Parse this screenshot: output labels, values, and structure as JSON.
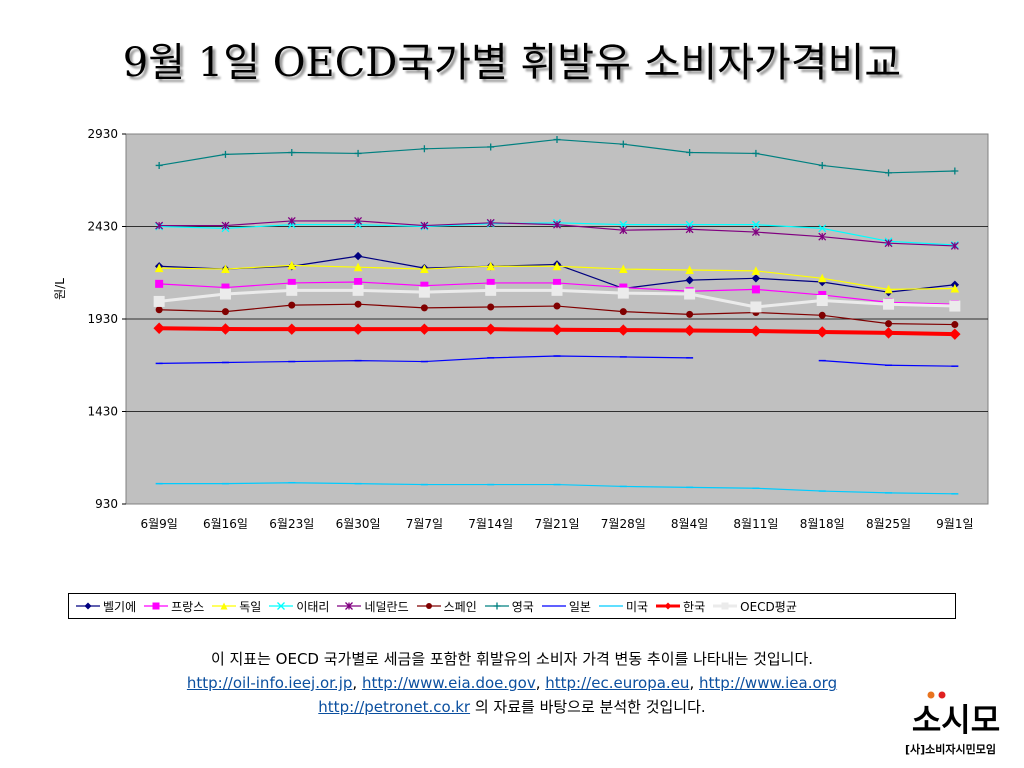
{
  "page": {
    "title": "9월 1일 OECD국가별 휘발유 소비자가격비교"
  },
  "chart_data": {
    "type": "line",
    "ylabel": "원/L",
    "xlabel": "",
    "ylim": [
      930,
      2930
    ],
    "yticks": [
      "930",
      "1430",
      "1930",
      "2430",
      "2930"
    ],
    "categories": [
      "6월9일",
      "6월16일",
      "6월23일",
      "6월30일",
      "7월7일",
      "7월14일",
      "7월21일",
      "7월28일",
      "8월4일",
      "8월11일",
      "8월18일",
      "8월25일",
      "9월1일"
    ],
    "grid": "horizontal",
    "legend_position": "bottom",
    "plot_background": "#c0c0c0",
    "series": [
      {
        "name": "벨기에",
        "color": "#000080",
        "marker": "diamond",
        "width": 1.2,
        "values": [
          2215,
          2200,
          2215,
          2270,
          2205,
          2215,
          2225,
          2095,
          2140,
          2150,
          2130,
          2075,
          2115
        ]
      },
      {
        "name": "프랑스",
        "color": "#ff00ff",
        "marker": "square",
        "width": 1.2,
        "values": [
          2120,
          2100,
          2125,
          2130,
          2110,
          2125,
          2125,
          2100,
          2080,
          2090,
          2060,
          2020,
          2010
        ]
      },
      {
        "name": "독일",
        "color": "#ffff00",
        "marker": "triangle",
        "width": 1.2,
        "values": [
          2205,
          2200,
          2220,
          2210,
          2200,
          2215,
          2215,
          2200,
          2195,
          2190,
          2150,
          2090,
          2095
        ]
      },
      {
        "name": "이태리",
        "color": "#00ffff",
        "marker": "x",
        "width": 1.2,
        "values": [
          2430,
          2420,
          2440,
          2440,
          2430,
          2445,
          2450,
          2440,
          2440,
          2440,
          2420,
          2350,
          2330
        ]
      },
      {
        "name": "네덜란드",
        "color": "#800080",
        "marker": "star",
        "width": 1.2,
        "values": [
          2435,
          2435,
          2460,
          2460,
          2435,
          2450,
          2440,
          2410,
          2415,
          2400,
          2375,
          2340,
          2325
        ]
      },
      {
        "name": "스페인",
        "color": "#800000",
        "marker": "circle",
        "width": 1.2,
        "values": [
          1980,
          1970,
          2005,
          2010,
          1990,
          1995,
          2000,
          1970,
          1955,
          1965,
          1950,
          1905,
          1900
        ]
      },
      {
        "name": "영국",
        "color": "#008080",
        "marker": "plus",
        "width": 1.2,
        "values": [
          2760,
          2820,
          2830,
          2825,
          2850,
          2860,
          2900,
          2875,
          2830,
          2825,
          2760,
          2720,
          2730
        ]
      },
      {
        "name": "일본",
        "color": "#0000ff",
        "marker": "dash",
        "width": 1.2,
        "values": [
          1690,
          1695,
          1700,
          1705,
          1700,
          1720,
          1730,
          1725,
          1720,
          null,
          1705,
          1680,
          1675
        ]
      },
      {
        "name": "미국",
        "color": "#00ccff",
        "marker": "dash",
        "width": 1.2,
        "values": [
          1040,
          1040,
          1045,
          1040,
          1035,
          1035,
          1035,
          1025,
          1020,
          1015,
          1000,
          990,
          985
        ]
      },
      {
        "name": "한국",
        "color": "#ff0000",
        "marker": "diamond",
        "width": 4,
        "values": [
          1880,
          1876,
          1875,
          1875,
          1875,
          1875,
          1872,
          1870,
          1868,
          1865,
          1860,
          1855,
          1848
        ]
      },
      {
        "name": "OECD평균",
        "color": "#ebebeb",
        "marker": "square",
        "width": 3,
        "values": [
          2025,
          2065,
          2085,
          2085,
          2075,
          2085,
          2085,
          2070,
          2065,
          1995,
          2030,
          2010,
          2000
        ]
      }
    ]
  },
  "notes": {
    "line1": "이 지표는 OECD 국가별로 세금을 포함한 휘발유의 소비자 가격 변동 추이를 나타내는 것입니다.",
    "links": [
      "http://oil-info.ieej.or.jp",
      "http://www.eia.doe.gov",
      "http://ec.europa.eu",
      "http://www.iea.org"
    ],
    "sep": ", ",
    "link5": "http://petronet.co.kr",
    "line3_suffix": " 의 자료를 바탕으로 분석한 것입니다."
  },
  "logo": {
    "text": "소시모",
    "subtitle": "[사]소비자시민모임"
  }
}
